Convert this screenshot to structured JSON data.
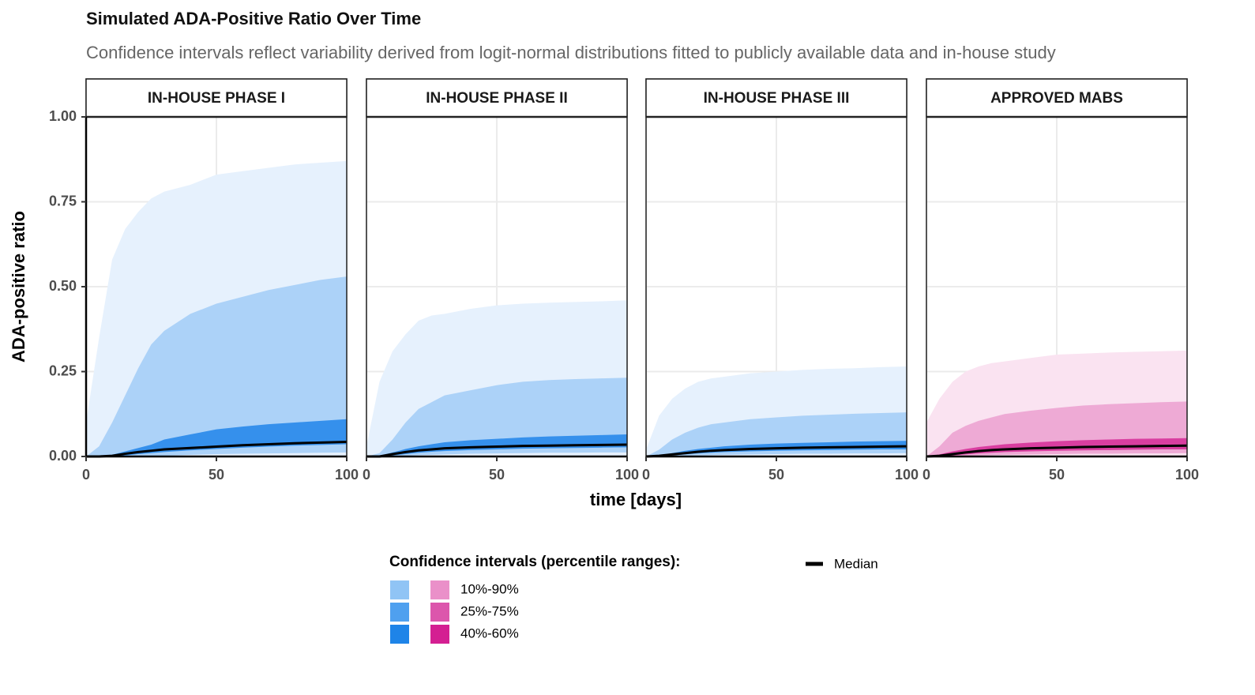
{
  "title": "Simulated ADA-Positive Ratio Over Time",
  "subtitle": "Confidence intervals reflect variability derived from logit-normal distributions fitted to publicly available data and in-house study",
  "x_label": "time [days]",
  "y_label": "ADA-positive ratio",
  "legend": {
    "title": "Confidence intervals (percentile ranges):",
    "items": [
      {
        "label": "10%-90%",
        "colors": [
          "#90c4f5",
          "#ea90c9"
        ]
      },
      {
        "label": "25%-75%",
        "colors": [
          "#4fa0ef",
          "#dc56ac"
        ]
      },
      {
        "label": "40%-60%",
        "colors": [
          "#1e84e8",
          "#d41f92"
        ]
      }
    ],
    "median": {
      "label": "Median",
      "color": "#000000"
    }
  },
  "chart_data": [
    {
      "type": "ribbon",
      "title": "IN-HOUSE PHASE I",
      "x": [
        0,
        5,
        10,
        15,
        20,
        25,
        30,
        40,
        50,
        60,
        70,
        80,
        90,
        100
      ],
      "xlim": [
        0,
        100
      ],
      "xticks": [
        0,
        50,
        100
      ],
      "ylim": [
        0,
        1
      ],
      "yticks": [
        {
          "value": 0,
          "label": "0.00"
        },
        {
          "value": 0.25,
          "label": "0.25"
        },
        {
          "value": 0.5,
          "label": "0.50"
        },
        {
          "value": 0.75,
          "label": "0.75"
        },
        {
          "value": 1,
          "label": "1.00"
        }
      ],
      "grid": true,
      "series": [
        {
          "color": "#e6f1fd",
          "low": [
            0,
            0,
            0,
            0,
            0,
            0,
            0,
            0,
            0,
            0,
            0,
            0,
            0,
            0
          ],
          "high": [
            0.1,
            0.35,
            0.58,
            0.67,
            0.72,
            0.76,
            0.78,
            0.8,
            0.83,
            0.84,
            0.85,
            0.86,
            0.865,
            0.87
          ]
        },
        {
          "color": "#acd2f8",
          "low": [
            0,
            0,
            0,
            0,
            0,
            0,
            0.002,
            0.005,
            0.007,
            0.008,
            0.009,
            0.01,
            0.011,
            0.012
          ],
          "high": [
            0,
            0.03,
            0.1,
            0.18,
            0.26,
            0.33,
            0.37,
            0.42,
            0.45,
            0.47,
            0.49,
            0.505,
            0.52,
            0.53
          ]
        },
        {
          "color": "#3590ec",
          "low": [
            0,
            0,
            0,
            0.003,
            0.007,
            0.01,
            0.013,
            0.018,
            0.022,
            0.026,
            0.029,
            0.032,
            0.034,
            0.036
          ],
          "high": [
            0,
            0,
            0.005,
            0.015,
            0.025,
            0.035,
            0.05,
            0.065,
            0.08,
            0.088,
            0.095,
            0.1,
            0.105,
            0.11
          ]
        }
      ],
      "median": {
        "color": "#000000",
        "values": [
          0,
          0,
          0.002,
          0.008,
          0.013,
          0.017,
          0.021,
          0.025,
          0.029,
          0.033,
          0.036,
          0.039,
          0.041,
          0.043
        ]
      }
    },
    {
      "type": "ribbon",
      "title": "IN-HOUSE PHASE II",
      "x": [
        0,
        5,
        10,
        15,
        20,
        25,
        30,
        40,
        50,
        60,
        70,
        80,
        90,
        100
      ],
      "xlim": [
        0,
        100
      ],
      "xticks": [
        0,
        50,
        100
      ],
      "ylim": [
        0,
        1
      ],
      "yticks": [
        0,
        0.25,
        0.5,
        0.75,
        1
      ],
      "grid": true,
      "series": [
        {
          "color": "#e6f1fd",
          "low": [
            0,
            0,
            0,
            0,
            0,
            0,
            0,
            0,
            0,
            0,
            0,
            0,
            0,
            0
          ],
          "high": [
            0.03,
            0.22,
            0.31,
            0.36,
            0.4,
            0.415,
            0.42,
            0.435,
            0.445,
            0.45,
            0.453,
            0.455,
            0.457,
            0.46
          ]
        },
        {
          "color": "#acd2f8",
          "low": [
            0,
            0,
            0,
            0.002,
            0.004,
            0.005,
            0.006,
            0.008,
            0.009,
            0.01,
            0.011,
            0.011,
            0.012,
            0.012
          ],
          "high": [
            0,
            0.01,
            0.05,
            0.1,
            0.14,
            0.16,
            0.18,
            0.195,
            0.21,
            0.22,
            0.225,
            0.228,
            0.23,
            0.232
          ]
        },
        {
          "color": "#3590ec",
          "low": [
            0,
            0,
            0.003,
            0.007,
            0.011,
            0.014,
            0.016,
            0.019,
            0.021,
            0.023,
            0.024,
            0.025,
            0.026,
            0.027
          ],
          "high": [
            0,
            0.002,
            0.012,
            0.022,
            0.03,
            0.036,
            0.042,
            0.048,
            0.052,
            0.056,
            0.059,
            0.061,
            0.063,
            0.065
          ]
        }
      ],
      "median": {
        "color": "#000000",
        "values": [
          0,
          0,
          0.007,
          0.013,
          0.018,
          0.021,
          0.024,
          0.027,
          0.029,
          0.031,
          0.032,
          0.033,
          0.034,
          0.035
        ]
      }
    },
    {
      "type": "ribbon",
      "title": "IN-HOUSE PHASE III",
      "x": [
        0,
        5,
        10,
        15,
        20,
        25,
        30,
        40,
        50,
        60,
        70,
        80,
        90,
        100
      ],
      "xlim": [
        0,
        100
      ],
      "xticks": [
        0,
        50,
        100
      ],
      "ylim": [
        0,
        1
      ],
      "yticks": [
        0,
        0.25,
        0.5,
        0.75,
        1
      ],
      "grid": true,
      "series": [
        {
          "color": "#e6f1fd",
          "low": [
            0,
            0,
            0,
            0,
            0,
            0,
            0,
            0,
            0,
            0,
            0,
            0,
            0,
            0
          ],
          "high": [
            0.02,
            0.12,
            0.17,
            0.2,
            0.22,
            0.23,
            0.235,
            0.245,
            0.25,
            0.255,
            0.258,
            0.26,
            0.263,
            0.265
          ]
        },
        {
          "color": "#acd2f8",
          "low": [
            0,
            0,
            0,
            0.002,
            0.003,
            0.004,
            0.005,
            0.006,
            0.007,
            0.008,
            0.008,
            0.009,
            0.009,
            0.01
          ],
          "high": [
            0,
            0.02,
            0.05,
            0.07,
            0.085,
            0.095,
            0.1,
            0.11,
            0.115,
            0.12,
            0.123,
            0.126,
            0.128,
            0.13
          ]
        },
        {
          "color": "#3590ec",
          "low": [
            0,
            0,
            0.003,
            0.006,
            0.009,
            0.011,
            0.013,
            0.015,
            0.017,
            0.018,
            0.019,
            0.02,
            0.021,
            0.021
          ],
          "high": [
            0,
            0.003,
            0.01,
            0.017,
            0.022,
            0.026,
            0.03,
            0.035,
            0.038,
            0.04,
            0.042,
            0.044,
            0.045,
            0.046
          ]
        }
      ],
      "median": {
        "color": "#000000",
        "values": [
          0,
          0.002,
          0.006,
          0.01,
          0.014,
          0.017,
          0.019,
          0.022,
          0.024,
          0.026,
          0.027,
          0.028,
          0.029,
          0.03
        ]
      }
    },
    {
      "type": "ribbon",
      "title": "APPROVED MABS",
      "x": [
        0,
        5,
        10,
        15,
        20,
        25,
        30,
        40,
        50,
        60,
        70,
        80,
        90,
        100
      ],
      "xlim": [
        0,
        100
      ],
      "xticks": [
        0,
        50,
        100
      ],
      "ylim": [
        0,
        1
      ],
      "yticks": [
        0,
        0.25,
        0.5,
        0.75,
        1
      ],
      "grid": true,
      "series": [
        {
          "color": "#fae3f1",
          "low": [
            0,
            0,
            0,
            0,
            0,
            0,
            0,
            0,
            0,
            0,
            0,
            0,
            0,
            0
          ],
          "high": [
            0.1,
            0.17,
            0.22,
            0.25,
            0.265,
            0.275,
            0.28,
            0.29,
            0.3,
            0.303,
            0.306,
            0.308,
            0.31,
            0.312
          ]
        },
        {
          "color": "#eeaad5",
          "low": [
            0,
            0,
            0,
            0.002,
            0.003,
            0.004,
            0.005,
            0.006,
            0.007,
            0.008,
            0.008,
            0.009,
            0.009,
            0.01
          ],
          "high": [
            0,
            0.03,
            0.07,
            0.09,
            0.105,
            0.115,
            0.125,
            0.135,
            0.143,
            0.15,
            0.154,
            0.157,
            0.16,
            0.162
          ]
        },
        {
          "color": "#d93ea0",
          "low": [
            0,
            0,
            0.003,
            0.006,
            0.009,
            0.011,
            0.013,
            0.015,
            0.017,
            0.018,
            0.019,
            0.02,
            0.021,
            0.021
          ],
          "high": [
            0,
            0.006,
            0.015,
            0.022,
            0.028,
            0.032,
            0.036,
            0.041,
            0.045,
            0.048,
            0.05,
            0.052,
            0.053,
            0.054
          ]
        }
      ],
      "median": {
        "color": "#000000",
        "values": [
          0,
          0.002,
          0.007,
          0.012,
          0.016,
          0.019,
          0.021,
          0.024,
          0.026,
          0.028,
          0.029,
          0.03,
          0.031,
          0.032
        ]
      }
    }
  ]
}
